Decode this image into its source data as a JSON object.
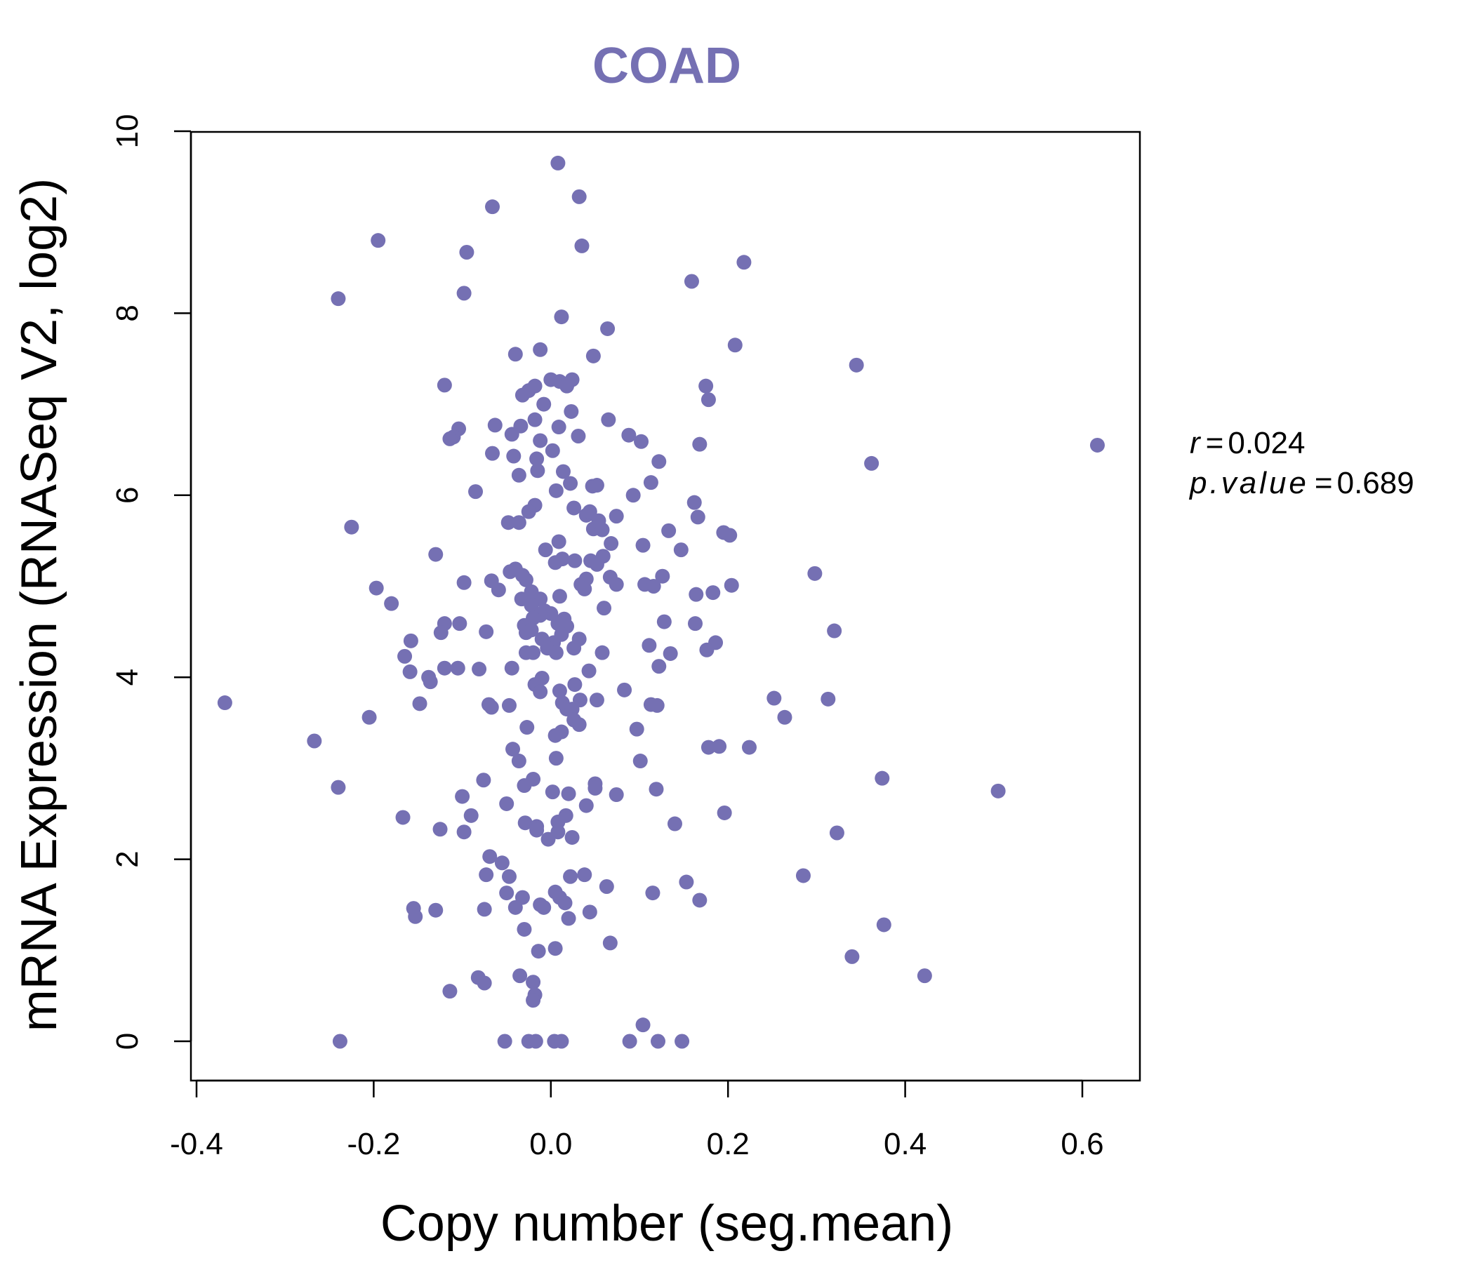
{
  "chart_data": {
    "type": "scatter",
    "title": "COAD",
    "xlabel": "Copy number (seg.mean)",
    "ylabel": "mRNA Expression (RNASeq V2, log2)",
    "xlim": [
      -0.4,
      0.65
    ],
    "ylim": [
      0,
      10
    ],
    "xticks": [
      -0.4,
      -0.2,
      0.0,
      0.2,
      0.4,
      0.6
    ],
    "xtick_labels": [
      "-0.4",
      "-0.2",
      "0.0",
      "0.2",
      "0.4",
      "0.6"
    ],
    "yticks": [
      0,
      2,
      4,
      6,
      8,
      10
    ],
    "ytick_labels": [
      "0",
      "2",
      "4",
      "6",
      "8",
      "10"
    ],
    "grid": false,
    "legend": "none",
    "point_color": "#7570b3",
    "stats": {
      "r_label": "r",
      "r_value": "0.024",
      "p_label": "p.value",
      "p_value": "0.689"
    },
    "points": [
      [
        0.008,
        9.65
      ],
      [
        0.032,
        9.28
      ],
      [
        -0.066,
        9.17
      ],
      [
        -0.195,
        8.8
      ],
      [
        0.035,
        8.74
      ],
      [
        -0.095,
        8.67
      ],
      [
        0.218,
        8.56
      ],
      [
        0.159,
        8.35
      ],
      [
        -0.24,
        8.16
      ],
      [
        -0.098,
        8.22
      ],
      [
        0.012,
        7.96
      ],
      [
        0.064,
        7.83
      ],
      [
        0.208,
        7.65
      ],
      [
        -0.04,
        7.55
      ],
      [
        -0.012,
        7.6
      ],
      [
        0.048,
        7.53
      ],
      [
        0.345,
        7.43
      ],
      [
        -0.12,
        7.21
      ],
      [
        -0.025,
        7.15
      ],
      [
        -0.018,
        7.2
      ],
      [
        0.0,
        7.27
      ],
      [
        0.01,
        7.25
      ],
      [
        0.024,
        7.27
      ],
      [
        0.018,
        7.2
      ],
      [
        0.175,
        7.2
      ],
      [
        0.178,
        7.05
      ],
      [
        -0.008,
        7.0
      ],
      [
        0.023,
        6.92
      ],
      [
        -0.032,
        7.1
      ],
      [
        0.065,
        6.83
      ],
      [
        -0.018,
        6.83
      ],
      [
        -0.034,
        6.76
      ],
      [
        -0.063,
        6.77
      ],
      [
        -0.104,
        6.73
      ],
      [
        -0.11,
        6.64
      ],
      [
        -0.114,
        6.62
      ],
      [
        0.009,
        6.75
      ],
      [
        0.088,
        6.66
      ],
      [
        -0.044,
        6.67
      ],
      [
        0.102,
        6.59
      ],
      [
        0.168,
        6.56
      ],
      [
        0.031,
        6.65
      ],
      [
        -0.012,
        6.6
      ],
      [
        0.002,
        6.49
      ],
      [
        -0.066,
        6.46
      ],
      [
        -0.042,
        6.43
      ],
      [
        -0.016,
        6.4
      ],
      [
        -0.015,
        6.27
      ],
      [
        0.122,
        6.37
      ],
      [
        0.362,
        6.35
      ],
      [
        0.617,
        6.55
      ],
      [
        -0.036,
        6.22
      ],
      [
        0.014,
        6.26
      ],
      [
        0.022,
        6.13
      ],
      [
        0.047,
        6.1
      ],
      [
        0.052,
        6.11
      ],
      [
        0.113,
        6.14
      ],
      [
        -0.085,
        6.04
      ],
      [
        0.006,
        6.05
      ],
      [
        0.093,
        6.0
      ],
      [
        0.162,
        5.92
      ],
      [
        -0.018,
        5.89
      ],
      [
        -0.025,
        5.82
      ],
      [
        0.026,
        5.86
      ],
      [
        0.04,
        5.78
      ],
      [
        0.044,
        5.82
      ],
      [
        0.074,
        5.77
      ],
      [
        0.166,
        5.76
      ],
      [
        0.054,
        5.72
      ],
      [
        -0.225,
        5.65
      ],
      [
        -0.048,
        5.7
      ],
      [
        -0.036,
        5.7
      ],
      [
        0.048,
        5.63
      ],
      [
        0.058,
        5.62
      ],
      [
        0.133,
        5.61
      ],
      [
        0.195,
        5.59
      ],
      [
        0.202,
        5.56
      ],
      [
        0.009,
        5.49
      ],
      [
        0.068,
        5.47
      ],
      [
        0.104,
        5.45
      ],
      [
        0.147,
        5.4
      ],
      [
        -0.006,
        5.4
      ],
      [
        -0.13,
        5.35
      ],
      [
        0.013,
        5.3
      ],
      [
        0.005,
        5.26
      ],
      [
        0.027,
        5.28
      ],
      [
        0.045,
        5.28
      ],
      [
        0.059,
        5.33
      ],
      [
        0.052,
        5.24
      ],
      [
        -0.046,
        5.16
      ],
      [
        -0.04,
        5.19
      ],
      [
        0.298,
        5.14
      ],
      [
        -0.032,
        5.12
      ],
      [
        0.04,
        5.08
      ],
      [
        0.067,
        5.1
      ],
      [
        0.126,
        5.11
      ],
      [
        -0.098,
        5.04
      ],
      [
        -0.067,
        5.06
      ],
      [
        -0.028,
        5.07
      ],
      [
        0.034,
        5.02
      ],
      [
        0.074,
        5.02
      ],
      [
        0.106,
        5.02
      ],
      [
        0.116,
        5.0
      ],
      [
        0.204,
        5.01
      ],
      [
        -0.197,
        4.98
      ],
      [
        -0.059,
        4.96
      ],
      [
        -0.022,
        4.94
      ],
      [
        0.038,
        4.97
      ],
      [
        0.164,
        4.91
      ],
      [
        0.183,
        4.93
      ],
      [
        -0.024,
        4.87
      ],
      [
        -0.033,
        4.86
      ],
      [
        -0.012,
        4.86
      ],
      [
        0.01,
        4.89
      ],
      [
        -0.18,
        4.81
      ],
      [
        -0.022,
        4.79
      ],
      [
        0.06,
        4.76
      ],
      [
        -0.007,
        4.73
      ],
      [
        0.0,
        4.7
      ],
      [
        -0.012,
        4.68
      ],
      [
        -0.02,
        4.65
      ],
      [
        0.015,
        4.64
      ],
      [
        -0.12,
        4.59
      ],
      [
        -0.103,
        4.59
      ],
      [
        -0.03,
        4.57
      ],
      [
        0.163,
        4.59
      ],
      [
        0.128,
        4.61
      ],
      [
        0.008,
        4.59
      ],
      [
        0.018,
        4.56
      ],
      [
        -0.028,
        4.49
      ],
      [
        -0.073,
        4.5
      ],
      [
        -0.022,
        4.52
      ],
      [
        -0.124,
        4.49
      ],
      [
        0.32,
        4.51
      ],
      [
        0.012,
        4.47
      ],
      [
        -0.01,
        4.42
      ],
      [
        0.003,
        4.38
      ],
      [
        0.032,
        4.42
      ],
      [
        -0.158,
        4.4
      ],
      [
        0.186,
        4.38
      ],
      [
        0.111,
        4.35
      ],
      [
        -0.004,
        4.32
      ],
      [
        0.026,
        4.32
      ],
      [
        0.058,
        4.27
      ],
      [
        0.176,
        4.3
      ],
      [
        -0.028,
        4.27
      ],
      [
        -0.02,
        4.27
      ],
      [
        0.006,
        4.27
      ],
      [
        -0.165,
        4.23
      ],
      [
        0.135,
        4.26
      ],
      [
        -0.12,
        4.1
      ],
      [
        -0.105,
        4.1
      ],
      [
        -0.081,
        4.09
      ],
      [
        -0.044,
        4.1
      ],
      [
        0.043,
        4.07
      ],
      [
        0.122,
        4.12
      ],
      [
        -0.159,
        4.06
      ],
      [
        -0.138,
        4.0
      ],
      [
        -0.136,
        3.95
      ],
      [
        -0.01,
        3.99
      ],
      [
        -0.018,
        3.92
      ],
      [
        0.027,
        3.92
      ],
      [
        -0.012,
        3.84
      ],
      [
        0.01,
        3.85
      ],
      [
        0.083,
        3.86
      ],
      [
        -0.368,
        3.72
      ],
      [
        -0.148,
        3.71
      ],
      [
        -0.07,
        3.7
      ],
      [
        -0.067,
        3.67
      ],
      [
        -0.047,
        3.69
      ],
      [
        0.013,
        3.72
      ],
      [
        0.033,
        3.75
      ],
      [
        0.052,
        3.75
      ],
      [
        0.018,
        3.65
      ],
      [
        0.024,
        3.65
      ],
      [
        0.113,
        3.7
      ],
      [
        0.12,
        3.69
      ],
      [
        0.252,
        3.77
      ],
      [
        0.313,
        3.76
      ],
      [
        -0.205,
        3.56
      ],
      [
        0.264,
        3.56
      ],
      [
        0.026,
        3.53
      ],
      [
        0.032,
        3.48
      ],
      [
        -0.027,
        3.45
      ],
      [
        0.097,
        3.43
      ],
      [
        0.012,
        3.4
      ],
      [
        0.005,
        3.36
      ],
      [
        -0.267,
        3.3
      ],
      [
        0.178,
        3.23
      ],
      [
        0.19,
        3.24
      ],
      [
        0.224,
        3.23
      ],
      [
        -0.043,
        3.21
      ],
      [
        -0.036,
        3.08
      ],
      [
        0.006,
        3.11
      ],
      [
        0.101,
        3.08
      ],
      [
        -0.076,
        2.87
      ],
      [
        -0.02,
        2.88
      ],
      [
        -0.03,
        2.81
      ],
      [
        0.05,
        2.83
      ],
      [
        0.05,
        2.78
      ],
      [
        0.119,
        2.77
      ],
      [
        0.002,
        2.74
      ],
      [
        0.02,
        2.72
      ],
      [
        0.074,
        2.71
      ],
      [
        0.374,
        2.89
      ],
      [
        0.505,
        2.75
      ],
      [
        -0.24,
        2.79
      ],
      [
        -0.1,
        2.69
      ],
      [
        -0.05,
        2.61
      ],
      [
        0.04,
        2.59
      ],
      [
        0.196,
        2.51
      ],
      [
        -0.09,
        2.48
      ],
      [
        0.017,
        2.48
      ],
      [
        0.008,
        2.41
      ],
      [
        -0.167,
        2.46
      ],
      [
        -0.029,
        2.4
      ],
      [
        -0.016,
        2.36
      ],
      [
        -0.016,
        2.32
      ],
      [
        0.008,
        2.3
      ],
      [
        -0.125,
        2.33
      ],
      [
        -0.098,
        2.3
      ],
      [
        0.14,
        2.39
      ],
      [
        0.323,
        2.29
      ],
      [
        -0.003,
        2.22
      ],
      [
        0.024,
        2.24
      ],
      [
        -0.069,
        2.03
      ],
      [
        -0.055,
        1.96
      ],
      [
        -0.073,
        1.83
      ],
      [
        -0.047,
        1.81
      ],
      [
        0.022,
        1.81
      ],
      [
        0.038,
        1.83
      ],
      [
        0.153,
        1.75
      ],
      [
        0.285,
        1.82
      ],
      [
        0.063,
        1.7
      ],
      [
        0.005,
        1.64
      ],
      [
        -0.05,
        1.63
      ],
      [
        0.115,
        1.63
      ],
      [
        -0.032,
        1.58
      ],
      [
        0.01,
        1.58
      ],
      [
        0.016,
        1.52
      ],
      [
        -0.012,
        1.5
      ],
      [
        -0.04,
        1.47
      ],
      [
        -0.008,
        1.47
      ],
      [
        -0.155,
        1.46
      ],
      [
        -0.153,
        1.37
      ],
      [
        -0.13,
        1.44
      ],
      [
        -0.075,
        1.45
      ],
      [
        0.044,
        1.42
      ],
      [
        0.168,
        1.55
      ],
      [
        0.02,
        1.35
      ],
      [
        0.376,
        1.28
      ],
      [
        -0.03,
        1.23
      ],
      [
        0.067,
        1.08
      ],
      [
        -0.014,
        0.99
      ],
      [
        0.005,
        1.02
      ],
      [
        0.34,
        0.93
      ],
      [
        0.422,
        0.72
      ],
      [
        -0.082,
        0.7
      ],
      [
        -0.075,
        0.64
      ],
      [
        -0.035,
        0.72
      ],
      [
        -0.02,
        0.65
      ],
      [
        -0.018,
        0.51
      ],
      [
        -0.114,
        0.55
      ],
      [
        -0.02,
        0.45
      ],
      [
        0.104,
        0.18
      ],
      [
        -0.238,
        0.0
      ],
      [
        -0.052,
        0.0
      ],
      [
        -0.025,
        0.0
      ],
      [
        -0.017,
        0.0
      ],
      [
        0.004,
        0.0
      ],
      [
        0.012,
        0.0
      ],
      [
        0.089,
        0.0
      ],
      [
        0.121,
        0.0
      ],
      [
        0.148,
        0.0
      ]
    ]
  }
}
